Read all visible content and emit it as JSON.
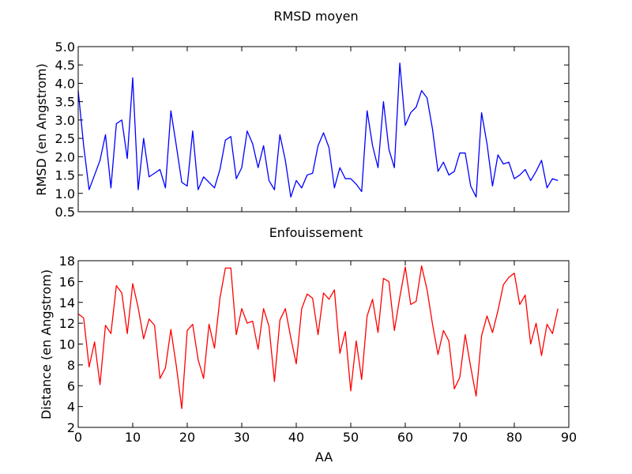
{
  "figure_title": "RMSD moyen",
  "chart_data": [
    {
      "type": "line",
      "title": "RMSD moyen",
      "xlabel": "",
      "ylabel": "RMSD (en Angstrom)",
      "xlim": [
        0,
        90
      ],
      "ylim": [
        0.5,
        5.0
      ],
      "yticks": [
        0.5,
        1.0,
        1.5,
        2.0,
        2.5,
        3.0,
        3.5,
        4.0,
        4.5,
        5.0
      ],
      "ytick_labels": [
        "0.5",
        "1.0",
        "1.5",
        "2.0",
        "2.5",
        "3.0",
        "3.5",
        "4.0",
        "4.5",
        "5.0"
      ],
      "xticks": [
        0,
        10,
        20,
        30,
        40,
        50,
        60,
        70,
        80,
        90
      ],
      "xtick_labels": [],
      "grid": false,
      "color": "#0000ff",
      "series": [
        {
          "x": [
            0,
            1,
            2,
            3,
            4,
            5,
            6,
            7,
            8,
            9,
            10,
            11,
            12,
            13,
            14,
            15,
            16,
            17,
            18,
            19,
            20,
            21,
            22,
            23,
            24,
            25,
            26,
            27,
            28,
            29,
            30,
            31,
            32,
            33,
            34,
            35,
            36,
            37,
            38,
            39,
            40,
            41,
            42,
            43,
            44,
            45,
            46,
            47,
            48,
            49,
            50,
            51,
            52,
            53,
            54,
            55,
            56,
            57,
            58,
            59,
            60,
            61,
            62,
            63,
            64,
            65,
            66,
            67,
            68,
            69,
            70,
            71,
            72,
            73,
            74,
            75,
            76,
            77,
            78,
            79,
            80,
            81,
            82,
            83,
            84,
            85,
            86,
            87,
            88
          ],
          "values": [
            3.8,
            2.3,
            1.1,
            1.5,
            1.9,
            2.6,
            1.15,
            2.9,
            3.0,
            1.95,
            4.15,
            1.1,
            2.5,
            1.45,
            1.55,
            1.65,
            1.15,
            3.25,
            2.3,
            1.3,
            1.2,
            2.7,
            1.1,
            1.45,
            1.3,
            1.15,
            1.65,
            2.45,
            2.55,
            1.4,
            1.7,
            2.7,
            2.35,
            1.7,
            2.3,
            1.35,
            1.1,
            2.6,
            1.9,
            0.9,
            1.35,
            1.15,
            1.5,
            1.55,
            2.3,
            2.65,
            2.25,
            1.15,
            1.7,
            1.4,
            1.4,
            1.25,
            1.05,
            3.25,
            2.3,
            1.7,
            3.5,
            2.2,
            1.7,
            4.55,
            2.85,
            3.2,
            3.35,
            3.8,
            3.6,
            2.75,
            1.6,
            1.85,
            1.5,
            1.6,
            2.1,
            2.1,
            1.2,
            0.9,
            3.2,
            2.35,
            1.2,
            2.05,
            1.8,
            1.85,
            1.4,
            1.5,
            1.65,
            1.35,
            1.6,
            1.9,
            1.15,
            1.4,
            1.35
          ]
        }
      ]
    },
    {
      "type": "line",
      "title": "Enfouissement",
      "xlabel": "AA",
      "ylabel": "Distance (en Angstrom)",
      "xlim": [
        0,
        90
      ],
      "ylim": [
        2,
        18
      ],
      "yticks": [
        2,
        4,
        6,
        8,
        10,
        12,
        14,
        16,
        18
      ],
      "ytick_labels": [
        "2",
        "4",
        "6",
        "8",
        "10",
        "12",
        "14",
        "16",
        "18"
      ],
      "xticks": [
        0,
        10,
        20,
        30,
        40,
        50,
        60,
        70,
        80,
        90
      ],
      "xtick_labels": [
        "0",
        "10",
        "20",
        "30",
        "40",
        "50",
        "60",
        "70",
        "80",
        "90"
      ],
      "grid": false,
      "color": "#ff0000",
      "series": [
        {
          "x": [
            0,
            1,
            2,
            3,
            4,
            5,
            6,
            7,
            8,
            9,
            10,
            11,
            12,
            13,
            14,
            15,
            16,
            17,
            18,
            19,
            20,
            21,
            22,
            23,
            24,
            25,
            26,
            27,
            28,
            29,
            30,
            31,
            32,
            33,
            34,
            35,
            36,
            37,
            38,
            39,
            40,
            41,
            42,
            43,
            44,
            45,
            46,
            47,
            48,
            49,
            50,
            51,
            52,
            53,
            54,
            55,
            56,
            57,
            58,
            59,
            60,
            61,
            62,
            63,
            64,
            65,
            66,
            67,
            68,
            69,
            70,
            71,
            72,
            73,
            74,
            75,
            76,
            77,
            78,
            79,
            80,
            81,
            82,
            83,
            84,
            85,
            86,
            87,
            88
          ],
          "values": [
            12.9,
            12.5,
            7.8,
            10.2,
            6.1,
            11.8,
            11.0,
            15.6,
            14.9,
            11.0,
            15.8,
            13.5,
            10.5,
            12.4,
            11.8,
            6.7,
            7.7,
            11.4,
            7.9,
            3.8,
            11.3,
            11.9,
            8.5,
            6.7,
            11.9,
            9.6,
            14.4,
            17.3,
            17.3,
            10.9,
            13.4,
            12.0,
            12.2,
            9.5,
            13.4,
            11.7,
            6.4,
            12.3,
            13.4,
            10.6,
            8.1,
            13.4,
            14.8,
            14.4,
            10.9,
            14.9,
            14.3,
            15.2,
            9.1,
            11.2,
            5.5,
            10.3,
            6.6,
            12.7,
            14.3,
            11.1,
            16.3,
            16.0,
            11.3,
            14.5,
            17.4,
            13.8,
            14.1,
            17.5,
            15.2,
            11.9,
            9.0,
            11.3,
            10.3,
            5.7,
            6.8,
            10.9,
            7.8,
            5.0,
            10.8,
            12.7,
            11.1,
            13.2,
            15.7,
            16.4,
            16.8,
            13.8,
            14.7,
            10.0,
            12.0,
            8.9,
            11.9,
            11.0,
            13.4
          ]
        }
      ]
    }
  ]
}
